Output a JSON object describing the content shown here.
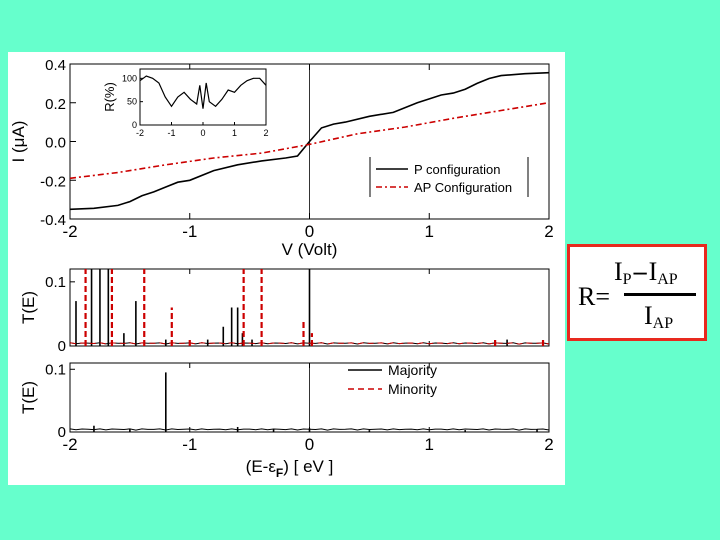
{
  "colors": {
    "background": "#66ffcc",
    "black": "#000000",
    "red": "#cc0000",
    "formula_border": "#e8291e"
  },
  "chart_data": [
    {
      "type": "line",
      "xlabel": "V (Volt)",
      "ylabel": "I (μA)",
      "xlim": [
        -2,
        2
      ],
      "ylim": [
        -0.4,
        0.4
      ],
      "xticks": [
        "-2",
        "-1",
        "0",
        "1",
        "2"
      ],
      "yticks": [
        "-0.4",
        "-0.2",
        "0.0",
        "0.2",
        "0.4"
      ],
      "legend_position": "bottom-right",
      "series": [
        {
          "name": "P configuration",
          "color": "#000000",
          "dash": "solid",
          "x": [
            -2,
            -1.8,
            -1.6,
            -1.5,
            -1.4,
            -1.3,
            -1.2,
            -1.1,
            -1.0,
            -0.8,
            -0.6,
            -0.4,
            -0.2,
            -0.1,
            0,
            0.1,
            0.2,
            0.3,
            0.5,
            0.7,
            0.9,
            1.0,
            1.1,
            1.2,
            1.3,
            1.4,
            1.5,
            1.6,
            1.8,
            2.0
          ],
          "y": [
            -0.35,
            -0.345,
            -0.33,
            -0.31,
            -0.28,
            -0.26,
            -0.235,
            -0.21,
            -0.2,
            -0.15,
            -0.12,
            -0.1,
            -0.085,
            -0.075,
            0.0,
            0.07,
            0.09,
            0.1,
            0.13,
            0.15,
            0.2,
            0.22,
            0.24,
            0.25,
            0.27,
            0.3,
            0.325,
            0.34,
            0.35,
            0.355
          ]
        },
        {
          "name": "AP Configuration",
          "color": "#cc0000",
          "dash": "dash-dot",
          "x": [
            -2,
            -1.6,
            -1.2,
            -0.8,
            -0.4,
            0,
            0.4,
            0.8,
            1.2,
            1.6,
            2.0
          ],
          "y": [
            -0.19,
            -0.16,
            -0.12,
            -0.085,
            -0.06,
            -0.015,
            0.04,
            0.075,
            0.12,
            0.16,
            0.2
          ]
        }
      ],
      "inset": {
        "type": "line",
        "ylabel": "R(%)",
        "xlim": [
          -2,
          2
        ],
        "ylim": [
          0,
          120
        ],
        "xticks": [
          "-2",
          "-1",
          "0",
          "1",
          "2"
        ],
        "yticks": [
          "0",
          "50",
          "100"
        ],
        "series": [
          {
            "color": "#000000",
            "x": [
              -2,
              -1.8,
              -1.6,
              -1.4,
              -1.2,
              -1.0,
              -0.8,
              -0.6,
              -0.4,
              -0.2,
              -0.1,
              0,
              0.1,
              0.2,
              0.4,
              0.6,
              0.8,
              1.0,
              1.2,
              1.4,
              1.6,
              1.8,
              2.0
            ],
            "y": [
              95,
              105,
              100,
              90,
              60,
              40,
              60,
              70,
              55,
              45,
              85,
              35,
              90,
              50,
              40,
              55,
              75,
              70,
              85,
              95,
              100,
              100,
              85
            ]
          }
        ]
      }
    },
    {
      "type": "line",
      "ylabel": "T(E)",
      "xlim": [
        -2,
        2
      ],
      "ylim": [
        0,
        0.12
      ],
      "yticks": [
        "0",
        "0.1"
      ],
      "series": [
        {
          "name": "Majority",
          "color": "#000000",
          "dash": "solid",
          "spikes": [
            [
              -1.95,
              0.07
            ],
            [
              -1.82,
              0.12
            ],
            [
              -1.75,
              0.12
            ],
            [
              -1.68,
              0.12
            ],
            [
              -1.55,
              0.02
            ],
            [
              -1.45,
              0.07
            ],
            [
              -1.2,
              0.01
            ],
            [
              -0.85,
              0.01
            ],
            [
              -0.72,
              0.03
            ],
            [
              -0.65,
              0.06
            ],
            [
              -0.6,
              0.06
            ],
            [
              -0.56,
              0.02
            ],
            [
              -0.48,
              0.01
            ],
            [
              0.0,
              0.12
            ],
            [
              1.65,
              0.01
            ]
          ]
        },
        {
          "name": "Minority",
          "color": "#cc0000",
          "dash": "dashed",
          "spikes": [
            [
              -1.87,
              0.12
            ],
            [
              -1.65,
              0.12
            ],
            [
              -1.38,
              0.12
            ],
            [
              -1.15,
              0.06
            ],
            [
              -1.0,
              0.01
            ],
            [
              -0.55,
              0.12
            ],
            [
              -0.4,
              0.12
            ],
            [
              -0.05,
              0.04
            ],
            [
              0.02,
              0.02
            ],
            [
              1.55,
              0.01
            ],
            [
              1.95,
              0.012
            ]
          ]
        }
      ]
    },
    {
      "type": "line",
      "ylabel": "T(E)",
      "xlabel": "(E-εF) [ eV ]",
      "xlim": [
        -2,
        2
      ],
      "ylim": [
        0,
        0.11
      ],
      "xticks": [
        "-2",
        "-1",
        "0",
        "1",
        "2"
      ],
      "yticks": [
        "0",
        "0.1"
      ],
      "legend_position": "top-right",
      "legend": [
        "Majority",
        "Minority"
      ],
      "series": [
        {
          "name": "Majority",
          "color": "#000000",
          "dash": "solid",
          "spikes": [
            [
              -1.8,
              0.01
            ],
            [
              -1.5,
              0.004
            ],
            [
              -1.2,
              0.095
            ],
            [
              -0.6,
              0.008
            ],
            [
              -0.3,
              0.004
            ],
            [
              0.0,
              0.006
            ],
            [
              0.5,
              0.003
            ],
            [
              1.3,
              0.003
            ],
            [
              1.9,
              0.004
            ]
          ]
        }
      ]
    }
  ],
  "formula": {
    "lhs": "R=",
    "num_a": "I",
    "num_a_sub": "P",
    "minus": "–",
    "num_b": "I",
    "num_b_sub": "AP",
    "den": "I",
    "den_sub": "AP"
  }
}
